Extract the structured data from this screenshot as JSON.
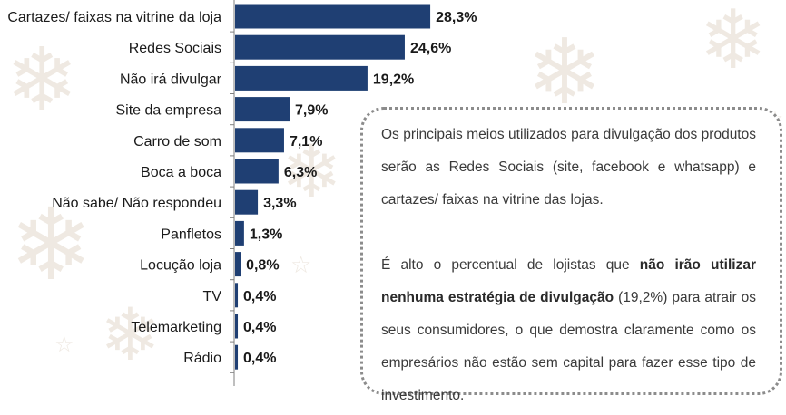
{
  "chart_data": {
    "type": "bar",
    "orientation": "horizontal",
    "categories": [
      "Cartazes/ faixas na vitrine da loja",
      "Redes Sociais",
      "Não irá divulgar",
      "Site da empresa",
      "Carro de som",
      "Boca a boca",
      "Não sabe/ Não respondeu",
      "Panfletos",
      "Locução loja",
      "TV",
      "Telemarketing",
      "Rádio"
    ],
    "values": [
      28.3,
      24.6,
      19.2,
      7.9,
      7.1,
      6.3,
      3.3,
      1.3,
      0.8,
      0.4,
      0.4,
      0.4
    ],
    "data_labels": [
      "28,3%",
      "24,6%",
      "19,2%",
      "7,9%",
      "7,1%",
      "6,3%",
      "3,3%",
      "1,3%",
      "0,8%",
      "0,4%",
      "0,4%",
      "0,4%"
    ],
    "bar_color": "#1f3f73",
    "grid": false,
    "legend": "none"
  },
  "callout": {
    "paragraph1": "Os principais meios utilizados para divulgação dos produtos serão as Redes Sociais (site, facebook e whatsapp)  e cartazes/ faixas na vitrine das lojas.",
    "p2_part1": "É alto o percentual de lojistas que ",
    "p2_bold": "não irão utilizar nenhuma estratégia de divulgação",
    "p2_part2": " (19,2%) para atrair os seus consumidores, o que demostra claramente como os empresários não estão sem capital para fazer esse tipo de investimento."
  },
  "decorations": {
    "snowflake_glyph": "❄",
    "star_glyph": "☆"
  }
}
